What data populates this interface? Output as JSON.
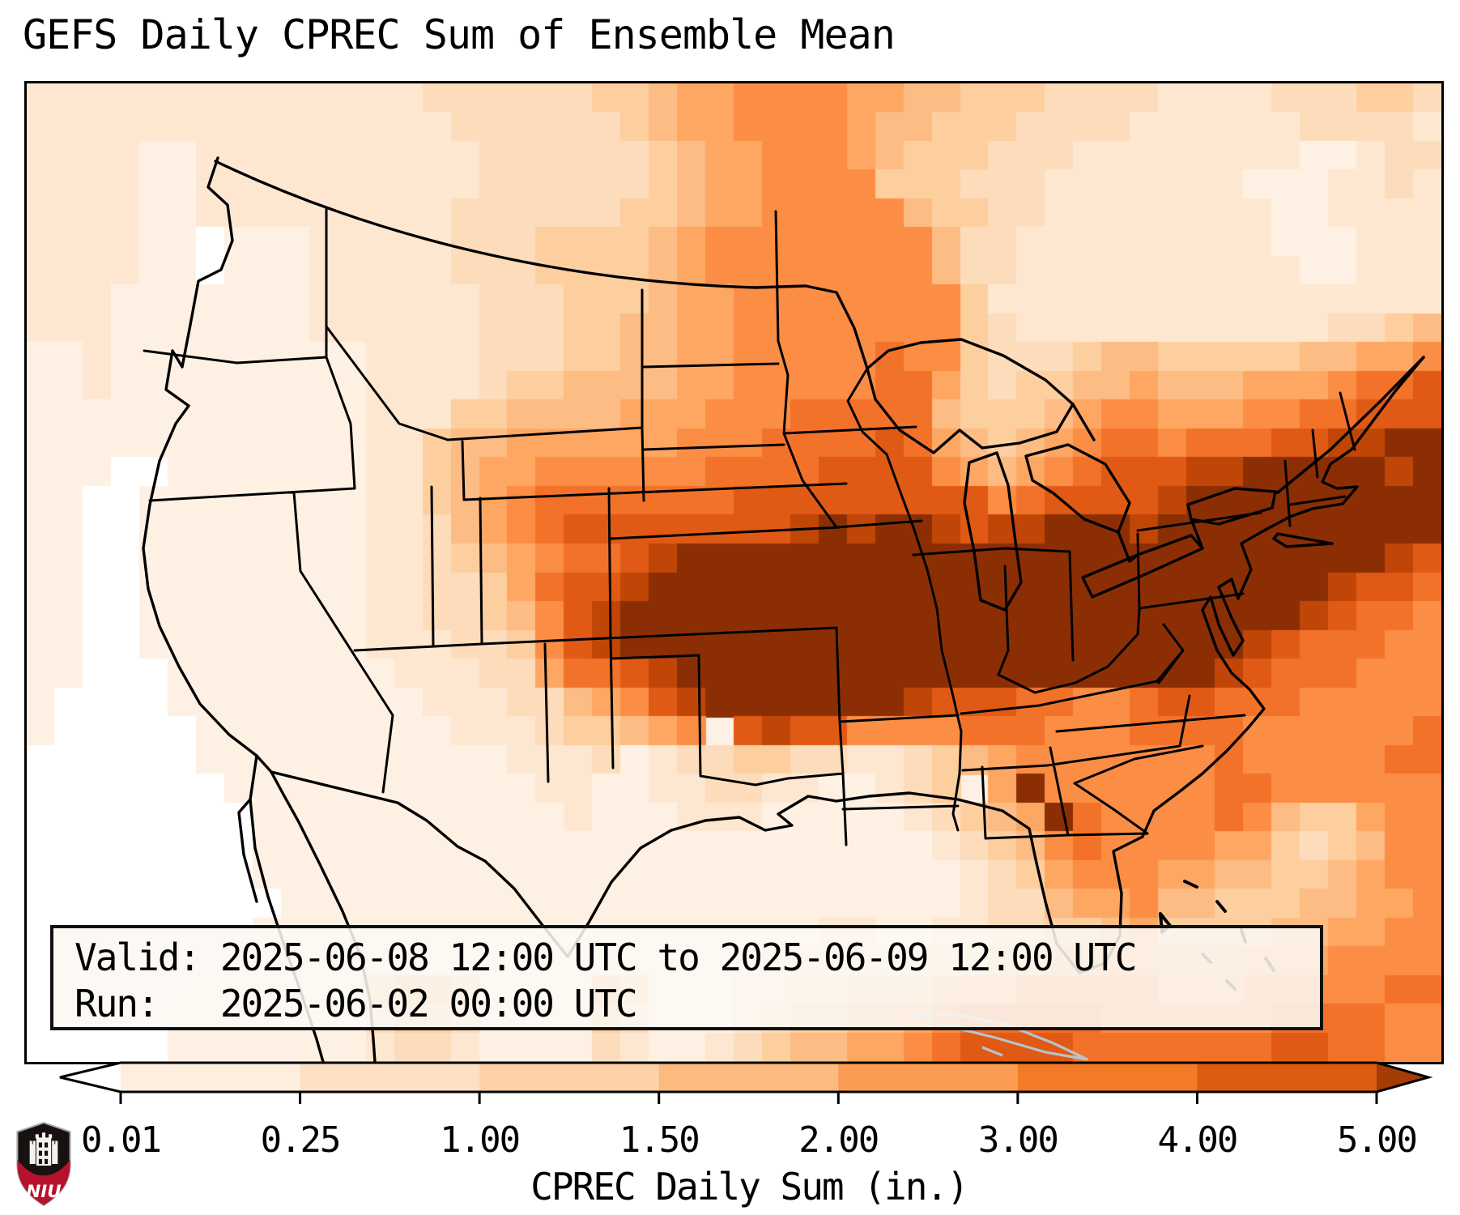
{
  "title": "GEFS Daily CPREC Sum of Ensemble Mean",
  "infobox": {
    "valid_line": "Valid: 2025-06-08 12:00 UTC to 2025-06-09 12:00 UTC",
    "run_line": "Run:   2025-06-02 00:00 UTC"
  },
  "colorbar": {
    "label": "CPREC Daily Sum (in.)",
    "ticks": [
      "0.01",
      "0.25",
      "1.00",
      "1.50",
      "2.00",
      "3.00",
      "4.00",
      "5.00"
    ],
    "under_color": "#ffffff",
    "over_color": "#a33c05",
    "segment_colors": [
      "#fdeedd",
      "#fde0c3",
      "#fdd2a8",
      "#fdba80",
      "#fc9c52",
      "#f37b27",
      "#dd5c10"
    ]
  },
  "logo": {
    "text": "NIU",
    "red": "#b6122e",
    "black": "#17120f"
  },
  "chart_data": {
    "type": "heatmap",
    "title": "GEFS Daily CPREC Sum of Ensemble Mean",
    "variable": "CPREC Daily Sum",
    "units": "in.",
    "valid": "2025-06-08 12:00 UTC to 2025-06-09 12:00 UTC",
    "run": "2025-06-02 00:00 UTC",
    "region": "Continental United States and adjacent areas (Lambert-style projection)",
    "colorbar_tick_values": [
      0.01,
      0.25,
      1.0,
      1.5,
      2.0,
      3.0,
      4.0,
      5.0
    ],
    "colorbar_extend": "both",
    "legend_position": "bottom",
    "palette": {
      "0": "#ffffff",
      "1": "#fef1e4",
      "2": "#fde7d1",
      "3": "#fddcbb",
      "4": "#fdce9e",
      "5": "#fdbc84",
      "6": "#fda763",
      "7": "#fc8d44",
      "8": "#f3722a",
      "9": "#e05a15",
      "a": "#c04607",
      "b": "#8c2e04"
    },
    "palette_value_ranges_in": {
      "0": "< 0.01",
      "1": "0.01-0.1",
      "2": "0.1-0.25",
      "3": "0.25-0.5",
      "4": "0.5-1.0",
      "5": "1.0-1.5",
      "6": "1.5-2.0",
      "7": "2.0-2.5",
      "8": "2.5-3.0",
      "9": "3.0-4.0",
      "a": "4.0-5.0",
      "b": "> 5.0"
    },
    "grid_cols": 50,
    "grid_rows": 34,
    "grid": [
      "22222222222222333333445667777665544433332222333443",
      "22222222222222233333345667777655444333322222233332",
      "22221122222222223333334566777654443332222222211233",
      "22221122222222223333334566777744433322222221112232",
      "22221122222222233333344566777775443322222222112222",
      "22221101112222233344445677777777533222222222111222",
      "22221101112222233344445677777777533222222222211222",
      "22211111112222223334445667777777742222222222222222",
      "22211111112222223334455667777777743222222222223345",
      "11211111111122223334455667777787743334554444455667",
      "11211111111122223445555667777788643445565556667889",
      "11111111111122244555566677788888544456776667788999",
      "1111111111112245566666677788889865456788788899aabb",
      "11100111111122456677777788889999765678999aabbbbbab",
      "1100111111112245678888888999999999789999abbbbbbbbb",
      "110011111111223567899999999ababba9aabbbabbbbbbbbbb",
      "1100111111112234567889abbbbbbbbbbbbbbbbbbbbbbbbba9",
      "110011111111223346899abbbbbbbbbbbbbbbbbbbbbbbba998",
      "11001111111122334579abbbbbbbbbbbbbbbbbbbbbbbba9887",
      "11001111111122233479abbbbbbbbbbbbbbbbbbbbbba988877",
      "1100011111111222336889abbbbbbbbbbbbbbbbbbba9888777",
      "10000111111111222335679abbbbbbba999887789988877777",
      "100000111111111222344567 9a99777788877788887777778",
      "00000011111111111222312334433223456777777787777788",
      "000000011111111111221122332211234 6b77777788777777",
      "000000001111111111121112221111123456b8777787544677",
      "00000000111111111111111111111111234578777766434577",
      "00000000111111111111111111111111123467776655445677",
      "00000000011111111111111111111111123356675544455667",
      "00000000111111111111111111112211223344564444556677",
      "00000001111111111111111111222222334455665556667777",
      "00000011111145541111541112233444566777776667777788",
      "00000111111134431111431112344556788888777777888877",
      "00000111111123321111321123455667899998888888998877"
    ]
  }
}
